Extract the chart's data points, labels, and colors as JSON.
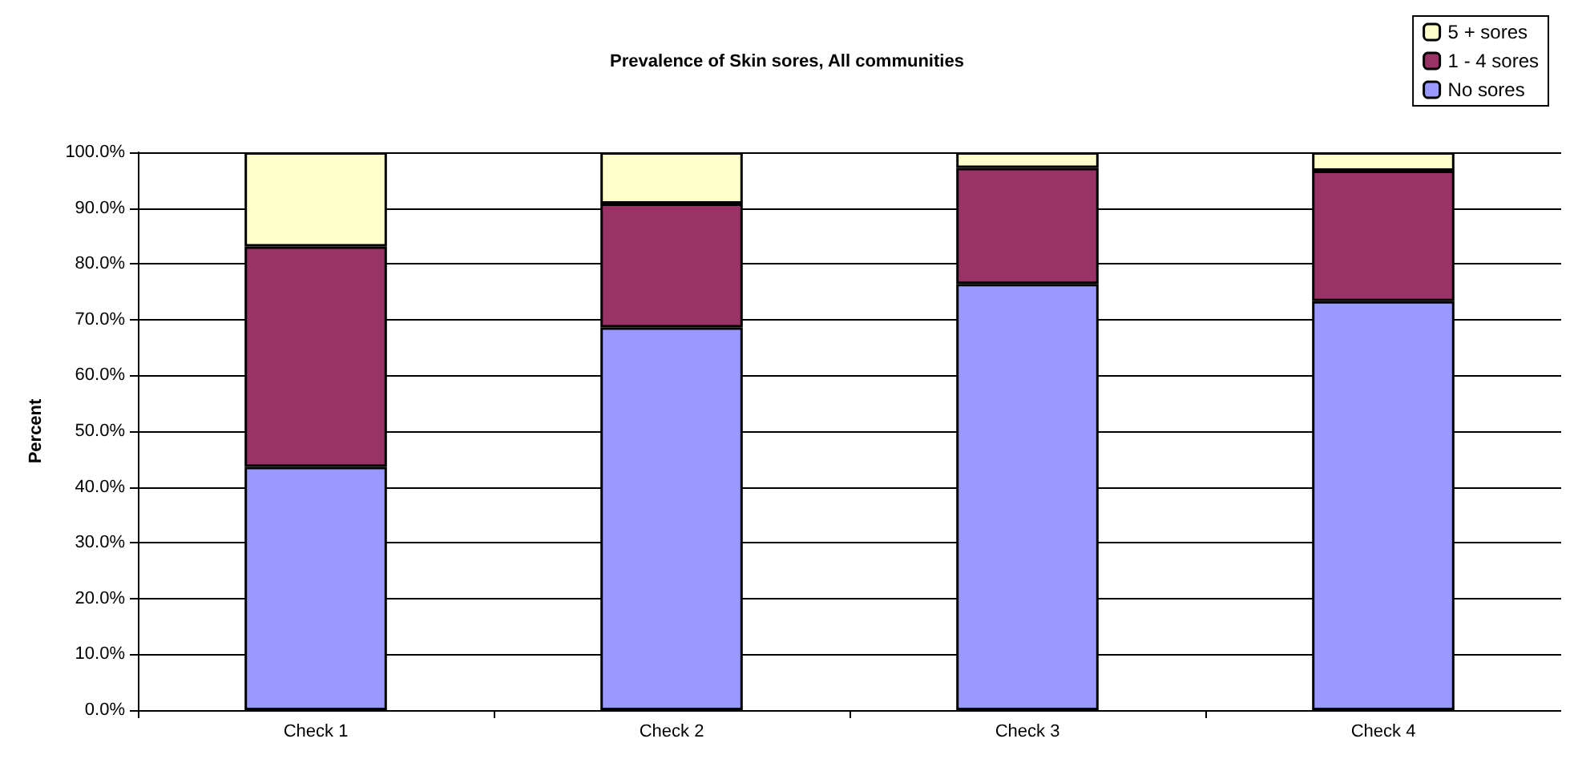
{
  "chart_data": {
    "type": "bar",
    "title": "Prevalence of Skin sores, All communities",
    "ylabel": "Percent",
    "categories": [
      "Check 1",
      "Check 2",
      "Check 3",
      "Check 4"
    ],
    "stacked": true,
    "series": [
      {
        "name": "No sores",
        "color": "#9999ff",
        "values": [
          43.6,
          68.6,
          76.4,
          73.3
        ]
      },
      {
        "name": "1 - 4 sores",
        "color": "#993366",
        "values": [
          39.5,
          22.2,
          20.8,
          23.4
        ]
      },
      {
        "name": "5 + sores",
        "color": "#ffffcc",
        "values": [
          16.9,
          9.2,
          2.8,
          3.3
        ]
      }
    ],
    "ylim": [
      0,
      100
    ],
    "yticks": [
      {
        "value": 0,
        "label": "0.0%"
      },
      {
        "value": 10,
        "label": "10.0%"
      },
      {
        "value": 20,
        "label": "20.0%"
      },
      {
        "value": 30,
        "label": "30.0%"
      },
      {
        "value": 40,
        "label": "40.0%"
      },
      {
        "value": 50,
        "label": "50.0%"
      },
      {
        "value": 60,
        "label": "60.0%"
      },
      {
        "value": 70,
        "label": "70.0%"
      },
      {
        "value": 80,
        "label": "80.0%"
      },
      {
        "value": 90,
        "label": "90.0%"
      },
      {
        "value": 100,
        "label": "100.0%"
      }
    ],
    "grid": "y",
    "legend": "top right"
  }
}
